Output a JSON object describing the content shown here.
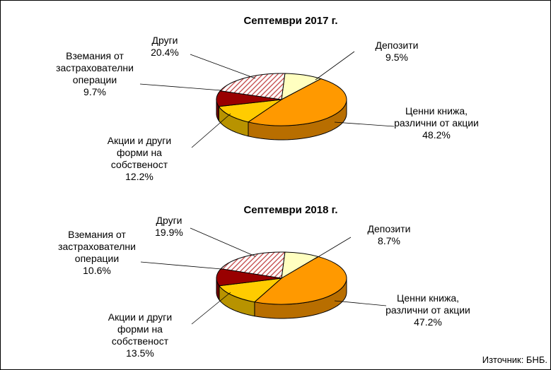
{
  "chart_data": [
    {
      "type": "pie3d",
      "title": "Септември 2017 г.",
      "categories": [
        "Депозити",
        "Ценни книжа,\nразлични от акции",
        "Акции и други\nформи на\nсобственост",
        "Вземания от\nзастрахователни\nоперации",
        "Други"
      ],
      "values": [
        9.5,
        48.2,
        12.2,
        9.7,
        20.4
      ],
      "value_labels": [
        "9.5%",
        "48.2%",
        "12.2%",
        "9.7%",
        "20.4%"
      ],
      "colors": [
        "#ffffc0",
        "#ff9900",
        "#ffcc00",
        "#990000",
        "#c04040"
      ],
      "patterns": [
        null,
        null,
        null,
        null,
        "hatch"
      ]
    },
    {
      "type": "pie3d",
      "title": "Септември 2018 г.",
      "categories": [
        "Депозити",
        "Ценни книжа,\nразлични от акции",
        "Акции и други\nформи на\nсобственост",
        "Вземания от\nзастрахователни\nоперации",
        "Други"
      ],
      "values": [
        8.7,
        47.2,
        13.5,
        10.6,
        19.9
      ],
      "value_labels": [
        "8.7%",
        "47.2%",
        "13.5%",
        "10.6%",
        "19.9%"
      ],
      "colors": [
        "#ffffc0",
        "#ff9900",
        "#ffcc00",
        "#990000",
        "#c04040"
      ],
      "patterns": [
        null,
        null,
        null,
        null,
        "hatch"
      ]
    }
  ],
  "source": "Източник: БНБ."
}
